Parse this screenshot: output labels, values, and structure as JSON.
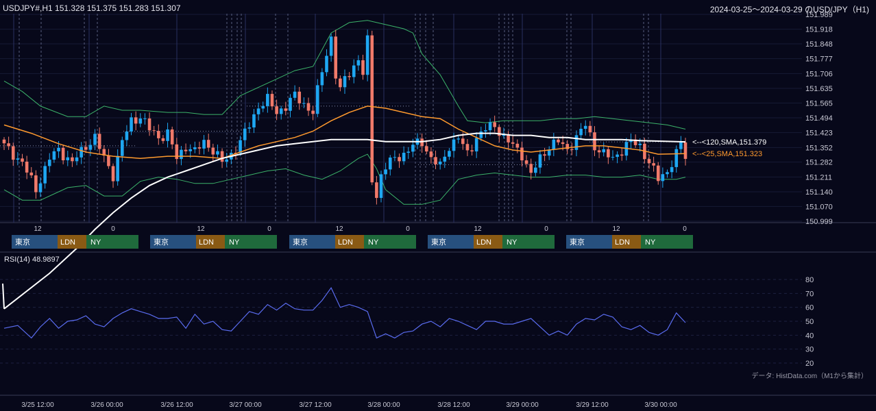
{
  "header": {
    "symbol_ohlc": "USDJPY#,H1 151.328 151.375 151.283 151.307",
    "range_title": "2024-03-25～2024-03-29 のUSD/JPY（H1)"
  },
  "indicators": {
    "sma120_label": "<--<120,SMA,151.379",
    "sma25_label": "<--<25,SMA,151.323",
    "rsi_title": "RSI(14) 48.9897"
  },
  "footer": {
    "source": "データ: HistData.com（M1から集計）"
  },
  "colors": {
    "background": "#07081a",
    "bull": "#1ea7f2",
    "bear": "#f07a6a",
    "sma120": "#ffffff",
    "sma25": "#ff9a2e",
    "bollinger": "#3cb36a",
    "rsi": "#5a6cf0",
    "tokyo": "#27507e",
    "london": "#8a5a14",
    "newyork": "#1f6a3c"
  },
  "sessions": {
    "tokyo_label": "東京",
    "london_label": "LDN",
    "ny_label": "NY",
    "days": [
      1,
      2,
      3,
      4,
      5
    ]
  },
  "chart_data": {
    "type": "candlestick",
    "price_axis": {
      "ticks": [
        "151.989",
        "151.918",
        "151.848",
        "151.777",
        "151.706",
        "151.635",
        "151.565",
        "151.494",
        "151.423",
        "151.352",
        "151.282",
        "151.211",
        "151.140",
        "151.070",
        "150.999"
      ],
      "range": [
        150.999,
        151.989
      ]
    },
    "hour_ticks": [
      "12",
      "0",
      "12",
      "0",
      "12",
      "0",
      "12",
      "0",
      "12",
      "0"
    ],
    "date_ticks": [
      "3/25 12:00",
      "3/26 00:00",
      "3/26 12:00",
      "3/27 00:00",
      "3/27 12:00",
      "3/28 00:00",
      "3/28 12:00",
      "3/29 00:00",
      "3/29 12:00",
      "3/30 00:00"
    ],
    "rsi_axis": {
      "ticks": [
        "80",
        "70",
        "60",
        "50",
        "40",
        "30",
        "20"
      ],
      "range": [
        20,
        80
      ]
    },
    "last_close": 151.307,
    "sma120_last": 151.379,
    "sma25_last": 151.323,
    "rsi_last": 48.9897,
    "close_path": [
      [
        0,
        151.36
      ],
      [
        4,
        151.28
      ],
      [
        7,
        151.15
      ],
      [
        10,
        151.3
      ],
      [
        12,
        151.34
      ],
      [
        15,
        151.28
      ],
      [
        18,
        151.36
      ],
      [
        20,
        151.4
      ],
      [
        22,
        151.3
      ],
      [
        24,
        151.22
      ],
      [
        26,
        151.38
      ],
      [
        28,
        151.48
      ],
      [
        30,
        151.5
      ],
      [
        32,
        151.44
      ],
      [
        34,
        151.4
      ],
      [
        36,
        151.42
      ],
      [
        38,
        151.3
      ],
      [
        40,
        151.36
      ],
      [
        42,
        151.33
      ],
      [
        44,
        151.38
      ],
      [
        46,
        151.34
      ],
      [
        48,
        151.28
      ],
      [
        50,
        151.32
      ],
      [
        52,
        151.38
      ],
      [
        54,
        151.46
      ],
      [
        56,
        151.55
      ],
      [
        58,
        151.58
      ],
      [
        60,
        151.52
      ],
      [
        62,
        151.55
      ],
      [
        64,
        151.6
      ],
      [
        66,
        151.56
      ],
      [
        68,
        151.52
      ],
      [
        70,
        151.72
      ],
      [
        72,
        151.88
      ],
      [
        73,
        151.7
      ],
      [
        74,
        151.62
      ],
      [
        75,
        151.68
      ],
      [
        77,
        151.74
      ],
      [
        78,
        151.78
      ],
      [
        79,
        151.7
      ],
      [
        80,
        151.86
      ],
      [
        81,
        151.2
      ],
      [
        82,
        151.12
      ],
      [
        83,
        151.22
      ],
      [
        84,
        151.26
      ],
      [
        86,
        151.3
      ],
      [
        88,
        151.32
      ],
      [
        90,
        151.36
      ],
      [
        92,
        151.38
      ],
      [
        94,
        151.3
      ],
      [
        96,
        151.26
      ],
      [
        98,
        151.36
      ],
      [
        100,
        151.4
      ],
      [
        102,
        151.32
      ],
      [
        104,
        151.4
      ],
      [
        106,
        151.44
      ],
      [
        108,
        151.46
      ],
      [
        110,
        151.4
      ],
      [
        112,
        151.36
      ],
      [
        114,
        151.32
      ],
      [
        116,
        151.22
      ],
      [
        118,
        151.3
      ],
      [
        120,
        151.36
      ],
      [
        122,
        151.38
      ],
      [
        124,
        151.34
      ],
      [
        126,
        151.4
      ],
      [
        128,
        151.46
      ],
      [
        130,
        151.36
      ],
      [
        132,
        151.32
      ],
      [
        134,
        151.3
      ],
      [
        136,
        151.34
      ],
      [
        138,
        151.38
      ],
      [
        140,
        151.36
      ],
      [
        142,
        151.28
      ],
      [
        144,
        151.2
      ],
      [
        146,
        151.24
      ],
      [
        148,
        151.32
      ],
      [
        149,
        151.37
      ],
      [
        150,
        151.307
      ]
    ],
    "sma25": [
      [
        0,
        151.46
      ],
      [
        6,
        151.42
      ],
      [
        12,
        151.37
      ],
      [
        18,
        151.33
      ],
      [
        24,
        151.31
      ],
      [
        30,
        151.3
      ],
      [
        36,
        151.31
      ],
      [
        42,
        151.31
      ],
      [
        48,
        151.3
      ],
      [
        52,
        151.33
      ],
      [
        56,
        151.36
      ],
      [
        60,
        151.38
      ],
      [
        64,
        151.4
      ],
      [
        68,
        151.43
      ],
      [
        72,
        151.48
      ],
      [
        76,
        151.52
      ],
      [
        80,
        151.55
      ],
      [
        84,
        151.54
      ],
      [
        88,
        151.52
      ],
      [
        92,
        151.5
      ],
      [
        96,
        151.49
      ],
      [
        100,
        151.44
      ],
      [
        104,
        151.4
      ],
      [
        108,
        151.36
      ],
      [
        112,
        151.34
      ],
      [
        116,
        151.33
      ],
      [
        120,
        151.34
      ],
      [
        124,
        151.35
      ],
      [
        128,
        151.36
      ],
      [
        132,
        151.36
      ],
      [
        136,
        151.35
      ],
      [
        140,
        151.34
      ],
      [
        144,
        151.32
      ],
      [
        150,
        151.323
      ]
    ],
    "sma120": [
      [
        0,
        150.58
      ],
      [
        10,
        150.75
      ],
      [
        16,
        150.87
      ],
      [
        20,
        150.96
      ],
      [
        24,
        151.04
      ],
      [
        28,
        151.11
      ],
      [
        32,
        151.17
      ],
      [
        36,
        151.21
      ],
      [
        40,
        151.24
      ],
      [
        44,
        151.27
      ],
      [
        48,
        151.3
      ],
      [
        52,
        151.32
      ],
      [
        56,
        151.34
      ],
      [
        60,
        151.36
      ],
      [
        64,
        151.37
      ],
      [
        68,
        151.38
      ],
      [
        72,
        151.39
      ],
      [
        76,
        151.39
      ],
      [
        80,
        151.39
      ],
      [
        84,
        151.38
      ],
      [
        88,
        151.38
      ],
      [
        92,
        151.38
      ],
      [
        96,
        151.39
      ],
      [
        100,
        151.41
      ],
      [
        104,
        151.42
      ],
      [
        108,
        151.42
      ],
      [
        112,
        151.41
      ],
      [
        116,
        151.41
      ],
      [
        120,
        151.4
      ],
      [
        124,
        151.4
      ],
      [
        128,
        151.39
      ],
      [
        132,
        151.39
      ],
      [
        136,
        151.39
      ],
      [
        140,
        151.385
      ],
      [
        150,
        151.379
      ]
    ],
    "bb_upper": [
      [
        0,
        151.67
      ],
      [
        4,
        151.62
      ],
      [
        8,
        151.55
      ],
      [
        14,
        151.5
      ],
      [
        18,
        151.5
      ],
      [
        22,
        151.55
      ],
      [
        26,
        151.53
      ],
      [
        30,
        151.53
      ],
      [
        36,
        151.52
      ],
      [
        40,
        151.52
      ],
      [
        44,
        151.51
      ],
      [
        48,
        151.51
      ],
      [
        52,
        151.6
      ],
      [
        56,
        151.64
      ],
      [
        60,
        151.68
      ],
      [
        64,
        151.72
      ],
      [
        68,
        151.74
      ],
      [
        72,
        151.9
      ],
      [
        76,
        151.95
      ],
      [
        80,
        151.96
      ],
      [
        84,
        151.94
      ],
      [
        88,
        151.92
      ],
      [
        90,
        151.9
      ],
      [
        92,
        151.8
      ],
      [
        96,
        151.7
      ],
      [
        100,
        151.55
      ],
      [
        102,
        151.48
      ],
      [
        106,
        151.47
      ],
      [
        110,
        151.48
      ],
      [
        114,
        151.48
      ],
      [
        118,
        151.48
      ],
      [
        122,
        151.49
      ],
      [
        126,
        151.49
      ],
      [
        130,
        151.5
      ],
      [
        134,
        151.49
      ],
      [
        138,
        151.48
      ],
      [
        142,
        151.47
      ],
      [
        146,
        151.46
      ],
      [
        150,
        151.44
      ]
    ],
    "bb_lower": [
      [
        0,
        151.15
      ],
      [
        4,
        151.1
      ],
      [
        8,
        151.1
      ],
      [
        14,
        151.16
      ],
      [
        18,
        151.17
      ],
      [
        22,
        151.12
      ],
      [
        26,
        151.12
      ],
      [
        30,
        151.19
      ],
      [
        34,
        151.21
      ],
      [
        38,
        151.2
      ],
      [
        42,
        151.18
      ],
      [
        46,
        151.18
      ],
      [
        50,
        151.2
      ],
      [
        54,
        151.22
      ],
      [
        58,
        151.24
      ],
      [
        62,
        151.25
      ],
      [
        66,
        151.22
      ],
      [
        70,
        151.2
      ],
      [
        74,
        151.24
      ],
      [
        78,
        151.3
      ],
      [
        80,
        151.32
      ],
      [
        82,
        151.25
      ],
      [
        84,
        151.15
      ],
      [
        88,
        151.08
      ],
      [
        92,
        151.08
      ],
      [
        96,
        151.1
      ],
      [
        100,
        151.2
      ],
      [
        104,
        151.22
      ],
      [
        108,
        151.23
      ],
      [
        112,
        151.22
      ],
      [
        116,
        151.21
      ],
      [
        120,
        151.21
      ],
      [
        124,
        151.22
      ],
      [
        128,
        151.22
      ],
      [
        132,
        151.21
      ],
      [
        136,
        151.21
      ],
      [
        140,
        151.22
      ],
      [
        144,
        151.2
      ],
      [
        148,
        151.2
      ],
      [
        150,
        151.21
      ]
    ],
    "rsi": [
      [
        0,
        45
      ],
      [
        3,
        47
      ],
      [
        6,
        38
      ],
      [
        8,
        46
      ],
      [
        10,
        52
      ],
      [
        12,
        45
      ],
      [
        14,
        50
      ],
      [
        16,
        51
      ],
      [
        18,
        54
      ],
      [
        20,
        48
      ],
      [
        22,
        46
      ],
      [
        24,
        52
      ],
      [
        26,
        56
      ],
      [
        28,
        59
      ],
      [
        30,
        57
      ],
      [
        32,
        55
      ],
      [
        34,
        52
      ],
      [
        36,
        52
      ],
      [
        38,
        53
      ],
      [
        40,
        45
      ],
      [
        42,
        55
      ],
      [
        44,
        48
      ],
      [
        46,
        50
      ],
      [
        48,
        44
      ],
      [
        50,
        43
      ],
      [
        52,
        50
      ],
      [
        54,
        57
      ],
      [
        56,
        55
      ],
      [
        58,
        62
      ],
      [
        60,
        58
      ],
      [
        62,
        63
      ],
      [
        64,
        59
      ],
      [
        66,
        58
      ],
      [
        68,
        58
      ],
      [
        70,
        65
      ],
      [
        72,
        74
      ],
      [
        74,
        60
      ],
      [
        76,
        62
      ],
      [
        78,
        60
      ],
      [
        80,
        57
      ],
      [
        82,
        38
      ],
      [
        84,
        41
      ],
      [
        86,
        38
      ],
      [
        88,
        42
      ],
      [
        90,
        43
      ],
      [
        92,
        48
      ],
      [
        94,
        50
      ],
      [
        96,
        46
      ],
      [
        98,
        52
      ],
      [
        100,
        50
      ],
      [
        102,
        47
      ],
      [
        104,
        44
      ],
      [
        106,
        50
      ],
      [
        108,
        50
      ],
      [
        110,
        48
      ],
      [
        112,
        48
      ],
      [
        114,
        50
      ],
      [
        116,
        52
      ],
      [
        118,
        46
      ],
      [
        120,
        40
      ],
      [
        122,
        43
      ],
      [
        124,
        40
      ],
      [
        126,
        48
      ],
      [
        128,
        52
      ],
      [
        130,
        51
      ],
      [
        132,
        55
      ],
      [
        134,
        53
      ],
      [
        136,
        46
      ],
      [
        138,
        44
      ],
      [
        140,
        47
      ],
      [
        142,
        42
      ],
      [
        144,
        40
      ],
      [
        146,
        44
      ],
      [
        148,
        56
      ],
      [
        150,
        49
      ]
    ]
  }
}
